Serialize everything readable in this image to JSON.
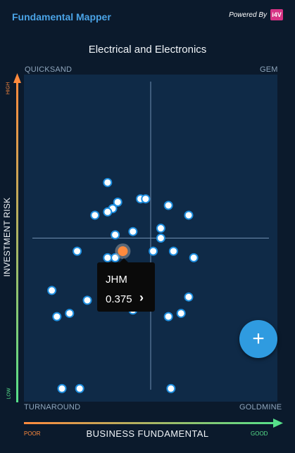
{
  "header": {
    "app_title": "Fundamental Mapper",
    "powered_by": "Powered By",
    "logo_text": "i4V"
  },
  "chart_data": {
    "type": "scatter",
    "title": "Electrical and Electronics",
    "xlabel": "BUSINESS FUNDAMENTAL",
    "ylabel": "INVESTMENT RISK",
    "x_tick_low": "POOR",
    "x_tick_high": "GOOD",
    "y_tick_high": "HIGH",
    "y_tick_low": "LOW",
    "quadrants": {
      "top_left": "QUICKSAND",
      "top_right": "GEM",
      "bottom_left": "TURNAROUND",
      "bottom_right": "GOLDMINE"
    },
    "xlim": [
      0,
      1
    ],
    "ylim": [
      0,
      1
    ],
    "crosshair": {
      "x": 0.5,
      "y": 0.5
    },
    "points": [
      {
        "x": 0.33,
        "y": 0.67
      },
      {
        "x": 0.37,
        "y": 0.61
      },
      {
        "x": 0.46,
        "y": 0.62
      },
      {
        "x": 0.48,
        "y": 0.62
      },
      {
        "x": 0.57,
        "y": 0.6
      },
      {
        "x": 0.65,
        "y": 0.57
      },
      {
        "x": 0.35,
        "y": 0.59
      },
      {
        "x": 0.33,
        "y": 0.58
      },
      {
        "x": 0.28,
        "y": 0.57
      },
      {
        "x": 0.54,
        "y": 0.53
      },
      {
        "x": 0.36,
        "y": 0.51
      },
      {
        "x": 0.43,
        "y": 0.52
      },
      {
        "x": 0.54,
        "y": 0.5
      },
      {
        "x": 0.21,
        "y": 0.46
      },
      {
        "x": 0.51,
        "y": 0.46
      },
      {
        "x": 0.59,
        "y": 0.46
      },
      {
        "x": 0.67,
        "y": 0.44
      },
      {
        "x": 0.33,
        "y": 0.44
      },
      {
        "x": 0.36,
        "y": 0.44
      },
      {
        "x": 0.11,
        "y": 0.34
      },
      {
        "x": 0.25,
        "y": 0.31
      },
      {
        "x": 0.32,
        "y": 0.31
      },
      {
        "x": 0.65,
        "y": 0.32
      },
      {
        "x": 0.43,
        "y": 0.28
      },
      {
        "x": 0.18,
        "y": 0.27
      },
      {
        "x": 0.13,
        "y": 0.26
      },
      {
        "x": 0.62,
        "y": 0.27
      },
      {
        "x": 0.57,
        "y": 0.26
      },
      {
        "x": 0.15,
        "y": 0.04
      },
      {
        "x": 0.22,
        "y": 0.04
      },
      {
        "x": 0.58,
        "y": 0.04
      }
    ],
    "selected_point": {
      "name": "JHM",
      "value": "0.375",
      "x": 0.39,
      "y": 0.46
    }
  },
  "colors": {
    "accent": "#4aa3e6",
    "point_fill": "#ffffff",
    "point_stroke": "#1f8fe0",
    "selected_fill": "#ff8a3d",
    "high": "#ff8a3d",
    "low": "#56e08a",
    "fab": "#2f9be0"
  },
  "fab": {
    "icon": "plus-icon"
  }
}
